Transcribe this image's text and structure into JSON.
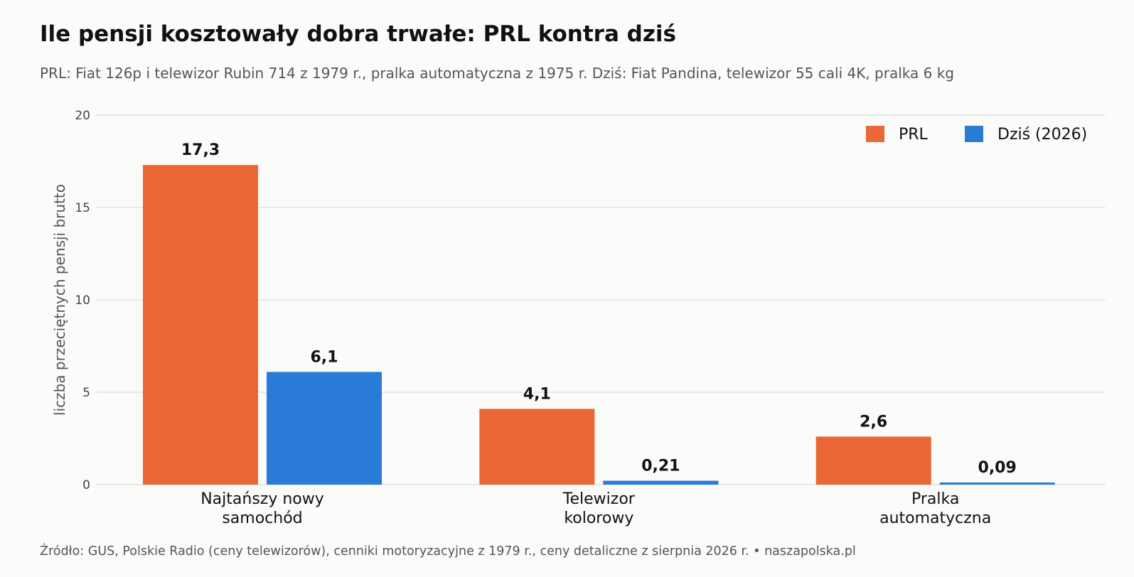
{
  "header": {
    "title": "Ile pensji kosztowały dobra trwałe: PRL kontra dziś",
    "subtitle": "PRL: Fiat 126p i telewizor Rubin 714 z 1979 r., pralka automatyczna z 1975 r. Dziś: Fiat Pandina, telewizor 55 cali 4K, pralka 6 kg"
  },
  "footer": {
    "source": "Źródło: GUS, Polskie Radio (ceny telewizorów), cenniki motoryzacyjne z 1979 r., ceny detaliczne z sierpnia 2026 r.   •   naszapolska.pl"
  },
  "chart_data": {
    "type": "bar",
    "ylabel": "liczba przeciętnych pensji brutto",
    "ylim": [
      0,
      20
    ],
    "yticks": [
      0,
      5,
      10,
      15,
      20
    ],
    "grid": true,
    "legend_position": "top-right",
    "categories": [
      [
        "Najtańszy nowy",
        "samochód"
      ],
      [
        "Telewizor",
        "kolorowy"
      ],
      [
        "Pralka",
        "automatyczna"
      ]
    ],
    "series": [
      {
        "name": "PRL",
        "color": "#e96835",
        "values": [
          17.3,
          4.1,
          2.6
        ],
        "labels": [
          "17,3",
          "4,1",
          "2,6"
        ]
      },
      {
        "name": "Dziś (2026)",
        "color": "#2a7ad8",
        "values": [
          6.1,
          0.21,
          0.09
        ],
        "labels": [
          "6,1",
          "0,21",
          "0,09"
        ]
      }
    ]
  }
}
